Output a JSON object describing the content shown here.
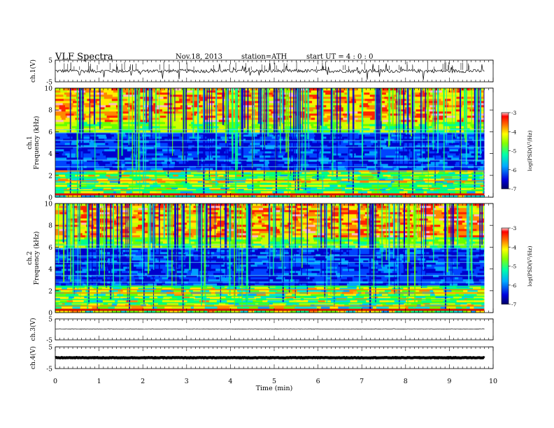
{
  "header": {
    "title": "VLF  Spectra",
    "date": "Nov.18, 2013",
    "station": "station=ATH",
    "start": "start  UT  =   4  : 0  : 0"
  },
  "colors": {
    "spectrum": [
      "#000066",
      "#0000cc",
      "#0044ff",
      "#00a0ff",
      "#00dddd",
      "#00ff88",
      "#66ff00",
      "#ccff00",
      "#ffee00",
      "#ff8800",
      "#ff2200",
      "#ffbbbb"
    ]
  },
  "chart_data": [
    {
      "type": "line",
      "name": "ch1-waveform",
      "ylabel": "ch.1(V)",
      "ylim": [
        -5,
        5
      ],
      "yticks": [
        "5",
        "-5"
      ],
      "xlim": [
        0,
        10
      ],
      "baseline": 0
    },
    {
      "type": "heatmap",
      "name": "ch1-spectrogram",
      "ylabel": "ch.1\nFrequency  (kHz)",
      "ylim": [
        0,
        10
      ],
      "yticks": [
        "0",
        "2",
        "4",
        "6",
        "8",
        "10"
      ],
      "xlim": [
        0,
        10
      ],
      "data_end_minutes": 9.8,
      "colorbar": {
        "label": "log(PSD(V²/Hz)",
        "range": [
          -7,
          -3
        ],
        "ticks": [
          "-3",
          "-4",
          "-5",
          "-6",
          "-7"
        ]
      }
    },
    {
      "type": "heatmap",
      "name": "ch2-spectrogram",
      "ylabel": "ch.2\nFrequency  (kHz)",
      "ylim": [
        0,
        10
      ],
      "yticks": [
        "0",
        "2",
        "4",
        "6",
        "8",
        "10"
      ],
      "xlim": [
        0,
        10
      ],
      "data_end_minutes": 9.8,
      "colorbar": {
        "label": "log(PSD(V²/Hz)",
        "range": [
          -7,
          -3
        ],
        "ticks": [
          "-3",
          "-4",
          "-5",
          "-6",
          "-7"
        ]
      }
    },
    {
      "type": "line",
      "name": "ch3-waveform",
      "ylabel": "ch.3(V)",
      "ylim": [
        -5,
        5
      ],
      "yticks": [
        "5",
        "-5"
      ],
      "xlim": [
        0,
        10
      ],
      "baseline": 0.2
    },
    {
      "type": "line",
      "name": "ch4-waveform",
      "ylabel": "ch.4(V)",
      "ylim": [
        -5,
        5
      ],
      "yticks": [
        "5",
        "-5"
      ],
      "xlim": [
        0,
        10
      ],
      "baseline": 0
    }
  ],
  "x_axis": {
    "label": "Time  (min)",
    "ticks": [
      "0",
      "1",
      "2",
      "3",
      "4",
      "5",
      "6",
      "7",
      "8",
      "9",
      "10"
    ]
  }
}
